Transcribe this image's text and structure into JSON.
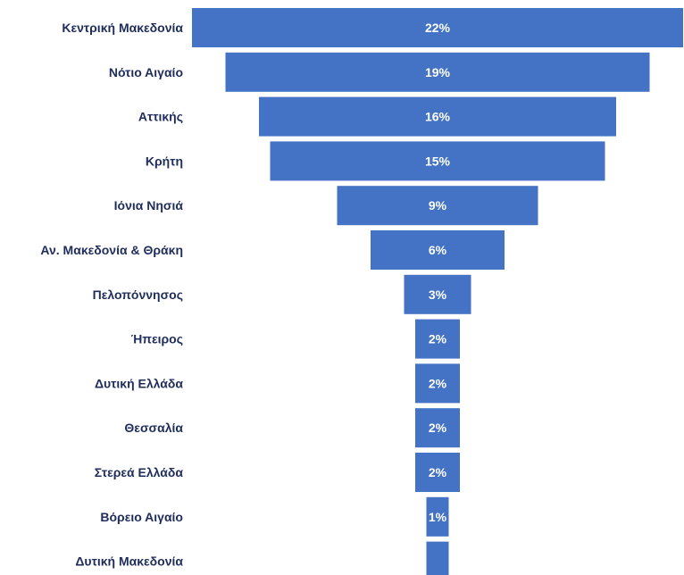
{
  "chart_data": {
    "type": "bar",
    "orientation": "funnel",
    "colors": {
      "bar": "#4472c4",
      "category_text": "#1f2d5c",
      "value_text": "#ffffff"
    },
    "categories": [
      "Κεντρική Μακεδονία",
      "Νότιο Αιγαίο",
      "Αττικής",
      "Κρήτη",
      "Ιόνια Νησιά",
      "Αν. Μακεδονία & Θράκη",
      "Πελοπόννησος",
      "Ήπειρος",
      "Δυτική Ελλάδα",
      "Θεσσαλία",
      "Στερεά Ελλάδα",
      "Βόρειο Αιγαίο",
      "Δυτική Μακεδονία"
    ],
    "values": [
      22,
      19,
      16,
      15,
      9,
      6,
      3,
      2,
      2,
      2,
      2,
      1,
      1
    ],
    "value_labels": [
      "22%",
      "19%",
      "16%",
      "15%",
      "9%",
      "6%",
      "3%",
      "2%",
      "2%",
      "2%",
      "2%",
      "1%",
      ""
    ],
    "unit": "%"
  }
}
